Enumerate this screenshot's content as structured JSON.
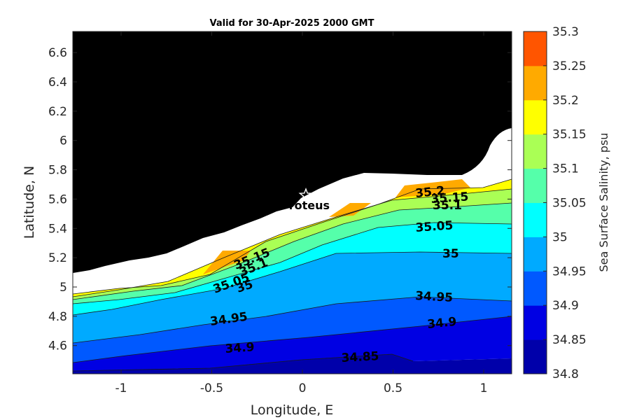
{
  "title": "Valid for 30-Apr-2025 2000 GMT",
  "x_axis": {
    "label": "Longitude, E",
    "ticks": [
      {
        "v": -1,
        "t": "-1"
      },
      {
        "v": -0.5,
        "t": "-0.5"
      },
      {
        "v": 0,
        "t": "0"
      },
      {
        "v": 0.5,
        "t": "0.5"
      },
      {
        "v": 1,
        "t": "1"
      }
    ]
  },
  "y_axis": {
    "label": "Latitude, N",
    "ticks": [
      {
        "v": 4.6,
        "t": "4.6"
      },
      {
        "v": 4.8,
        "t": "4.8"
      },
      {
        "v": 5,
        "t": "5"
      },
      {
        "v": 5.2,
        "t": "5.2"
      },
      {
        "v": 5.4,
        "t": "5.4"
      },
      {
        "v": 5.6,
        "t": "5.6"
      },
      {
        "v": 5.8,
        "t": "5.8"
      },
      {
        "v": 6,
        "t": "6"
      },
      {
        "v": 6.2,
        "t": "6.2"
      },
      {
        "v": 6.4,
        "t": "6.4"
      },
      {
        "v": 6.6,
        "t": "6.6"
      }
    ]
  },
  "colorbar": {
    "label": "Sea Surface Salinity, psu",
    "levels": [
      "34.8",
      "34.85",
      "34.9",
      "34.95",
      "35",
      "35.05",
      "35.1",
      "35.15",
      "35.2",
      "35.25",
      "35.3"
    ],
    "colors": [
      "#0000aa",
      "#0000e3",
      "#0059ff",
      "#00aaff",
      "#00ffff",
      "#55ffaa",
      "#aaff55",
      "#ffff00",
      "#ffaa00",
      "#ff5500"
    ]
  },
  "station": {
    "name": "Proteus",
    "marker": "star-icon"
  },
  "contour_labels": [
    {
      "t": "35.2"
    },
    {
      "t": "35.15"
    },
    {
      "t": "35.1"
    },
    {
      "t": "35.05"
    },
    {
      "t": "35"
    },
    {
      "t": "35.15"
    },
    {
      "t": "35.1"
    },
    {
      "t": "35.05"
    },
    {
      "t": "35"
    },
    {
      "t": "34.95"
    },
    {
      "t": "34.95"
    },
    {
      "t": "34.9"
    },
    {
      "t": "34.9"
    },
    {
      "t": "34.85"
    }
  ]
}
